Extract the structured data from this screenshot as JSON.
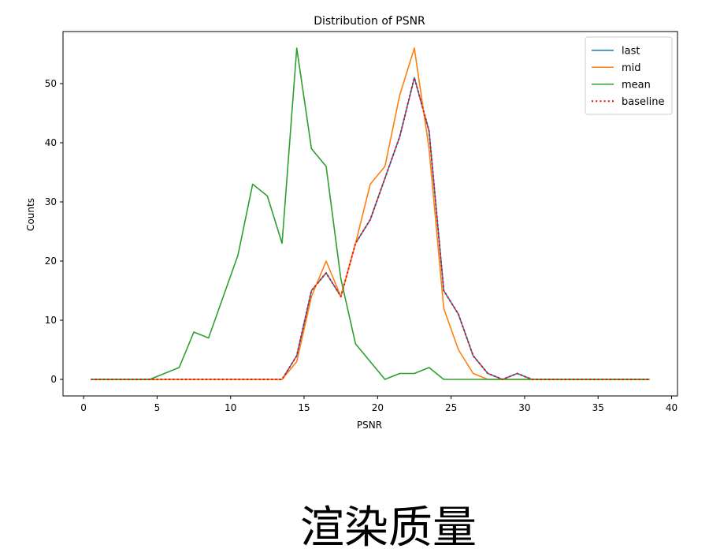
{
  "caption": "渲染质量",
  "chart_data": {
    "type": "line",
    "title": "Distribution of PSNR",
    "xlabel": "PSNR",
    "ylabel": "Counts",
    "xlim": [
      -1.4,
      40.4
    ],
    "ylim": [
      -2.8,
      58.8
    ],
    "xticks": [
      0,
      5,
      10,
      15,
      20,
      25,
      30,
      35,
      40
    ],
    "yticks": [
      0,
      10,
      20,
      30,
      40,
      50
    ],
    "grid": false,
    "legend_position": "top-right",
    "x": [
      0.5,
      1.5,
      2.5,
      3.5,
      4.5,
      5.5,
      6.5,
      7.5,
      8.5,
      9.5,
      10.5,
      11.5,
      12.5,
      13.5,
      14.5,
      15.5,
      16.5,
      17.5,
      18.5,
      19.5,
      20.5,
      21.5,
      22.5,
      23.5,
      24.5,
      25.5,
      26.5,
      27.5,
      28.5,
      29.5,
      30.5,
      31.5,
      32.5,
      33.5,
      34.5,
      35.5,
      36.5,
      37.5,
      38.5
    ],
    "series": [
      {
        "name": "last",
        "color": "#1f77b4",
        "style": "solid",
        "values": [
          0,
          0,
          0,
          0,
          0,
          0,
          0,
          0,
          0,
          0,
          0,
          0,
          0,
          0,
          4,
          15,
          18,
          14,
          23,
          27,
          34,
          41,
          51,
          42,
          15,
          11,
          4,
          1,
          0,
          1,
          0,
          0,
          0,
          0,
          0,
          0,
          0,
          0,
          0
        ]
      },
      {
        "name": "mid",
        "color": "#ff7f0e",
        "style": "solid",
        "values": [
          0,
          0,
          0,
          0,
          0,
          0,
          0,
          0,
          0,
          0,
          0,
          0,
          0,
          0,
          3,
          14,
          20,
          14,
          23,
          33,
          36,
          48,
          56,
          39,
          12,
          5,
          1,
          0,
          0,
          0,
          0,
          0,
          0,
          0,
          0,
          0,
          0,
          0,
          0
        ]
      },
      {
        "name": "mean",
        "color": "#2ca02c",
        "style": "solid",
        "values": [
          0,
          0,
          0,
          0,
          0,
          1,
          2,
          8,
          7,
          14,
          21,
          33,
          31,
          23,
          56,
          39,
          36,
          17,
          6,
          3,
          0,
          1,
          1,
          2,
          0,
          0,
          0,
          0,
          0,
          0,
          0,
          0,
          0,
          0,
          0,
          0,
          0,
          0,
          0
        ]
      },
      {
        "name": "baseline",
        "color": "#ff0000",
        "style": "dotted",
        "values": [
          0,
          0,
          0,
          0,
          0,
          0,
          0,
          0,
          0,
          0,
          0,
          0,
          0,
          0,
          4,
          15,
          18,
          14,
          23,
          27,
          34,
          41,
          51,
          42,
          15,
          11,
          4,
          1,
          0,
          1,
          0,
          0,
          0,
          0,
          0,
          0,
          0,
          0,
          0
        ]
      }
    ]
  }
}
